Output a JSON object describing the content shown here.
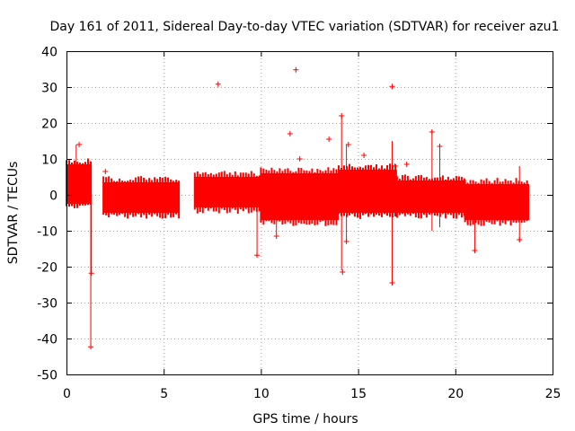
{
  "chart_data": {
    "type": "scatter",
    "title": "Day 161 of 2011, Sidereal Day-to-day VTEC variation (SDTVAR) for receiver azu1",
    "xlabel": "GPS time / hours",
    "ylabel": "SDTVAR / TECUs",
    "xlim": [
      0,
      25
    ],
    "ylim": [
      -50,
      40
    ],
    "xticks": [
      "0",
      "5",
      "10",
      "15",
      "20",
      "25"
    ],
    "yticks": [
      "40",
      "30",
      "20",
      "10",
      "0",
      "-10",
      "-20",
      "-30",
      "-40",
      "-50"
    ],
    "grid": true,
    "series_color": "#ff0000",
    "bands": [
      {
        "x0": 0.0,
        "x1": 1.3,
        "lo": -2.5,
        "hi": 8.5
      },
      {
        "x0": 1.9,
        "x1": 5.8,
        "lo": -5.0,
        "hi": 3.5
      },
      {
        "x0": 6.6,
        "x1": 10.0,
        "lo": -3.5,
        "hi": 5.0
      },
      {
        "x0": 10.0,
        "x1": 14.0,
        "lo": -7.0,
        "hi": 6.0
      },
      {
        "x0": 14.0,
        "x1": 17.0,
        "lo": -5.0,
        "hi": 7.0
      },
      {
        "x0": 17.0,
        "x1": 20.5,
        "lo": -5.0,
        "hi": 4.0
      },
      {
        "x0": 20.5,
        "x1": 23.8,
        "lo": -7.0,
        "hi": 3.0
      }
    ],
    "spikes": [
      {
        "x": 0.5,
        "y0": -2,
        "y1": 14
      },
      {
        "x": 1.25,
        "y0": -42,
        "y1": 0
      },
      {
        "x": 1.28,
        "y0": -22,
        "y1": 0
      },
      {
        "x": 9.8,
        "y0": -17,
        "y1": 2
      },
      {
        "x": 10.8,
        "y0": -11,
        "y1": 4
      },
      {
        "x": 14.15,
        "y0": -21,
        "y1": 22
      },
      {
        "x": 14.4,
        "y0": -13,
        "y1": 14
      },
      {
        "x": 16.75,
        "y0": -25,
        "y1": 15
      },
      {
        "x": 18.8,
        "y0": -10,
        "y1": 18
      },
      {
        "x": 19.2,
        "y0": -9,
        "y1": 13
      },
      {
        "x": 21.0,
        "y0": -16,
        "y1": 3
      },
      {
        "x": 23.3,
        "y0": -13,
        "y1": 8
      }
    ],
    "points": [
      {
        "x": 7.8,
        "y": 30.8
      },
      {
        "x": 11.8,
        "y": 34.8
      },
      {
        "x": 16.75,
        "y": 30.2
      },
      {
        "x": 11.5,
        "y": 17.0
      },
      {
        "x": 13.5,
        "y": 15.5
      },
      {
        "x": 14.15,
        "y": 22.0
      },
      {
        "x": 14.5,
        "y": 14.0
      },
      {
        "x": 16.9,
        "y": 8.0
      },
      {
        "x": 18.8,
        "y": 17.5
      },
      {
        "x": 19.2,
        "y": 13.5
      },
      {
        "x": 2.0,
        "y": 6.5
      },
      {
        "x": 6.7,
        "y": -2.5
      },
      {
        "x": 0.65,
        "y": 14.0
      },
      {
        "x": 1.25,
        "y": -42.3
      },
      {
        "x": 1.28,
        "y": -21.8
      },
      {
        "x": 9.8,
        "y": -16.8
      },
      {
        "x": 10.8,
        "y": -11.5
      },
      {
        "x": 14.2,
        "y": -21.5
      },
      {
        "x": 14.4,
        "y": -13.0
      },
      {
        "x": 16.75,
        "y": -24.5
      },
      {
        "x": 21.0,
        "y": -15.5
      },
      {
        "x": 23.3,
        "y": -12.5
      },
      {
        "x": 12.0,
        "y": 10.0
      },
      {
        "x": 15.3,
        "y": 11.0
      },
      {
        "x": 17.5,
        "y": 8.5
      }
    ]
  }
}
